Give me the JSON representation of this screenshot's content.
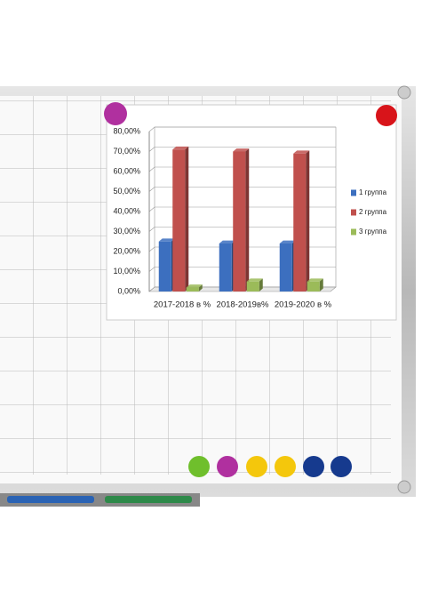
{
  "chart_data": {
    "type": "bar",
    "categories": [
      "2017-2018 в %",
      "2018-2019в%",
      "2019-2020 в %"
    ],
    "series": [
      {
        "name": "1 группа",
        "color": "#3c6fbf",
        "values": [
          25,
          24,
          24
        ]
      },
      {
        "name": "2 группа",
        "color": "#c0504d",
        "values": [
          71,
          70,
          69
        ]
      },
      {
        "name": "3 группа",
        "color": "#9bbb59",
        "values": [
          2,
          5,
          5
        ]
      }
    ],
    "ylim": [
      0,
      80
    ],
    "yticks": [
      {
        "value": 0,
        "label": "0,00%"
      },
      {
        "value": 10,
        "label": "10,00%"
      },
      {
        "value": 20,
        "label": "20,00%"
      },
      {
        "value": 30,
        "label": "30,00%"
      },
      {
        "value": 40,
        "label": "40,00%"
      },
      {
        "value": 50,
        "label": "50,00%"
      },
      {
        "value": 60,
        "label": "60,00%"
      },
      {
        "value": 70,
        "label": "70,00%"
      },
      {
        "value": 80,
        "label": "80,00%"
      }
    ],
    "grid": true,
    "legend": "right"
  }
}
